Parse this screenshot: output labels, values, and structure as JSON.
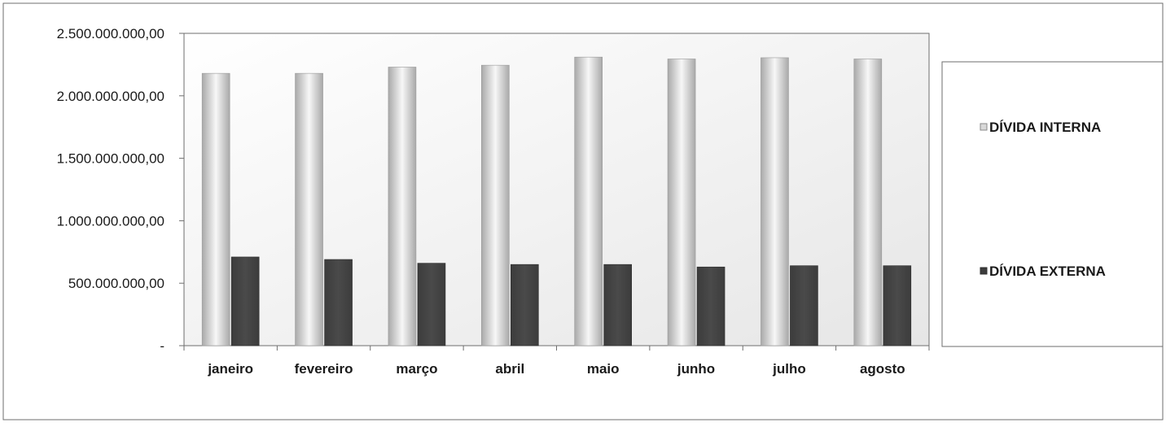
{
  "chart_data": {
    "type": "bar",
    "categories": [
      "janeiro",
      "fevereiro",
      "março",
      "abril",
      "maio",
      "junho",
      "julho",
      "agosto"
    ],
    "series": [
      {
        "name": "DÍVIDA INTERNA",
        "values": [
          2180000000,
          2180000000,
          2230000000,
          2245000000,
          2310000000,
          2295000000,
          2305000000,
          2295000000
        ],
        "color": "#c8c8c8"
      },
      {
        "name": "DÍVIDA EXTERNA",
        "values": [
          710000000,
          690000000,
          660000000,
          650000000,
          650000000,
          630000000,
          640000000,
          640000000
        ],
        "color": "#3a3a3a"
      }
    ],
    "ylim": [
      0,
      2500000000
    ],
    "yticks": [
      0,
      500000000,
      1000000000,
      1500000000,
      2000000000,
      2500000000
    ],
    "ytick_labels": [
      "-",
      "500.000.000,00",
      "1.000.000.000,00",
      "1.500.000.000,00",
      "2.000.000.000,00",
      "2.500.000.000,00"
    ],
    "legend_position": "right",
    "grid": false
  }
}
